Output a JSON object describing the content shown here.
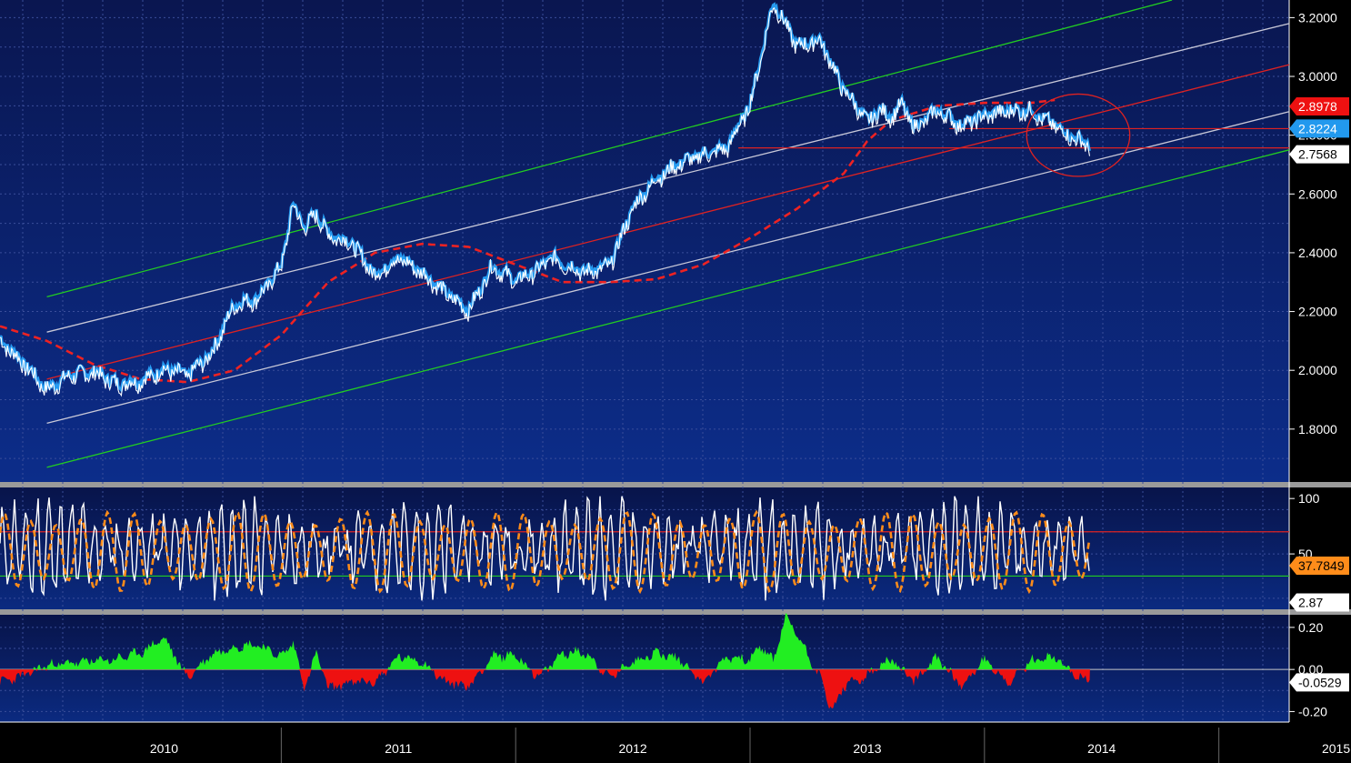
{
  "chart_data": [
    {
      "type": "line",
      "panel": "price",
      "ylim": [
        1.62,
        3.26
      ],
      "yticks": [
        "1.8000",
        "2.0000",
        "2.2000",
        "2.4000",
        "2.6000",
        "2.8000",
        "3.0000",
        "3.2000"
      ],
      "ytick_values": [
        1.8,
        2.0,
        2.2,
        2.4,
        2.6,
        2.8,
        3.0,
        3.2
      ],
      "xlim": [
        2009.8,
        2015.3
      ],
      "xticks": [
        "2010",
        "2011",
        "2012",
        "2013",
        "2014",
        "2015"
      ],
      "xtick_values": [
        2010.0,
        2011.0,
        2012.0,
        2013.0,
        2014.0,
        2015.0
      ],
      "series": [
        {
          "role": "price",
          "color": "#ffffff",
          "x": [
            2009.8,
            2009.9,
            2010.0,
            2010.1,
            2010.2,
            2010.3,
            2010.4,
            2010.5,
            2010.6,
            2010.7,
            2010.8,
            2010.9,
            2011.0,
            2011.05,
            2011.1,
            2011.15,
            2011.2,
            2011.3,
            2011.4,
            2011.5,
            2011.6,
            2011.7,
            2011.8,
            2011.9,
            2012.0,
            2012.1,
            2012.15,
            2012.2,
            2012.3,
            2012.4,
            2012.5,
            2012.6,
            2012.7,
            2012.8,
            2012.9,
            2013.0,
            2013.1,
            2013.2,
            2013.3,
            2013.4,
            2013.45,
            2013.5,
            2013.55,
            2013.6,
            2013.65,
            2013.7,
            2013.8,
            2013.9,
            2014.0,
            2014.1,
            2014.2,
            2014.25,
            2014.3,
            2014.35,
            2014.4,
            2014.45
          ],
          "y": [
            2.1,
            2.02,
            1.93,
            1.98,
            1.99,
            1.95,
            1.96,
            2.0,
            1.98,
            2.05,
            2.22,
            2.24,
            2.35,
            2.56,
            2.48,
            2.53,
            2.46,
            2.43,
            2.32,
            2.38,
            2.33,
            2.26,
            2.2,
            2.35,
            2.3,
            2.34,
            2.38,
            2.36,
            2.33,
            2.35,
            2.55,
            2.65,
            2.7,
            2.73,
            2.75,
            2.9,
            3.25,
            3.1,
            3.12,
            2.95,
            2.9,
            2.84,
            2.88,
            2.86,
            2.9,
            2.82,
            2.88,
            2.83,
            2.86,
            2.88,
            2.88,
            2.85,
            2.83,
            2.8,
            2.78,
            2.76
          ]
        },
        {
          "role": "moving-average",
          "color": "#ee2222",
          "x": [
            2009.8,
            2010.0,
            2010.2,
            2010.4,
            2010.6,
            2010.8,
            2011.0,
            2011.2,
            2011.4,
            2011.6,
            2011.8,
            2012.0,
            2012.2,
            2012.4,
            2012.6,
            2012.8,
            2013.0,
            2013.2,
            2013.4,
            2013.5,
            2013.6,
            2013.8,
            2014.0,
            2014.2,
            2014.3
          ],
          "y": [
            2.15,
            2.1,
            2.02,
            1.97,
            1.96,
            2.0,
            2.12,
            2.3,
            2.4,
            2.43,
            2.42,
            2.36,
            2.3,
            2.3,
            2.31,
            2.36,
            2.45,
            2.55,
            2.67,
            2.78,
            2.85,
            2.9,
            2.91,
            2.91,
            2.92
          ]
        },
        {
          "role": "channel-upper-outer",
          "color": "#22cc22",
          "x": [
            2010.0,
            2014.8
          ],
          "y": [
            2.25,
            3.26
          ]
        },
        {
          "role": "channel-upper-inner",
          "color": "#c8c8d8",
          "x": [
            2010.0,
            2015.3
          ],
          "y": [
            2.13,
            3.18
          ]
        },
        {
          "role": "channel-middle",
          "color": "#dd2222",
          "x": [
            2010.0,
            2015.3
          ],
          "y": [
            1.97,
            3.04
          ]
        },
        {
          "role": "channel-lower-inner",
          "color": "#c8c8d8",
          "x": [
            2010.0,
            2015.3
          ],
          "y": [
            1.82,
            2.88
          ]
        },
        {
          "role": "channel-lower-outer",
          "color": "#22cc22",
          "x": [
            2010.0,
            2015.3
          ],
          "y": [
            1.67,
            2.75
          ]
        }
      ],
      "hlines": [
        {
          "y": 2.8224,
          "color": "#dd2222",
          "x_start": 2013.85
        },
        {
          "y": 2.7568,
          "color": "#dd2222",
          "x_start": 2012.95
        }
      ],
      "tags": [
        {
          "text": "2.8978",
          "value": 2.8978,
          "bg": "#ee1111",
          "fg": "#ffffff"
        },
        {
          "text": "2.8224",
          "value": 2.8224,
          "bg": "#2299ee",
          "fg": "#ffffff"
        },
        {
          "text": "2.7568",
          "value": 2.7568,
          "bg": "#ffffff",
          "fg": "#000000"
        }
      ],
      "annotation": {
        "type": "ellipse",
        "cx": 2014.4,
        "cy": 2.8,
        "rx": 0.22,
        "ry": 0.14,
        "color": "#dd2222"
      }
    },
    {
      "type": "line",
      "panel": "oscillator",
      "ylim": [
        0,
        110
      ],
      "yticks": [
        "100",
        "50"
      ],
      "ytick_values": [
        100,
        50
      ],
      "hlines": [
        {
          "y": 70,
          "color": "#dd2222"
        },
        {
          "y": 30,
          "color": "#22cc22"
        }
      ],
      "series": [
        {
          "role": "fast",
          "color": "#ffffff",
          "cycles": 95,
          "x_end": 2014.45
        },
        {
          "role": "slow",
          "color": "#ff8c1a",
          "cycles": 42,
          "x_end": 2014.45
        }
      ],
      "tags": [
        {
          "text": "37.7849",
          "value": 37.7849,
          "bg": "#ff8c1a",
          "fg": "#000000"
        },
        {
          "text": "2.87",
          "value": 2.87,
          "bg": "#ffffff",
          "fg": "#000000"
        }
      ]
    },
    {
      "type": "area",
      "panel": "momentum",
      "ylim": [
        -0.25,
        0.26
      ],
      "yticks": [
        "0.20",
        "0.00",
        "-0.20"
      ],
      "ytick_values": [
        0.2,
        0.0,
        -0.2
      ],
      "pos_color": "#22ee22",
      "neg_color": "#ee1111",
      "x": [
        2009.8,
        2009.9,
        2010.0,
        2010.1,
        2010.2,
        2010.3,
        2010.4,
        2010.5,
        2010.6,
        2010.7,
        2010.8,
        2010.9,
        2011.0,
        2011.05,
        2011.1,
        2011.15,
        2011.2,
        2011.3,
        2011.4,
        2011.5,
        2011.6,
        2011.7,
        2011.8,
        2011.9,
        2012.0,
        2012.1,
        2012.2,
        2012.3,
        2012.4,
        2012.5,
        2012.6,
        2012.7,
        2012.8,
        2012.9,
        2013.0,
        2013.05,
        2013.1,
        2013.15,
        2013.2,
        2013.3,
        2013.35,
        2013.4,
        2013.5,
        2013.6,
        2013.7,
        2013.8,
        2013.9,
        2014.0,
        2014.1,
        2014.2,
        2014.3,
        2014.4,
        2014.45
      ],
      "y": [
        -0.06,
        -0.03,
        0.02,
        0.03,
        0.04,
        0.05,
        0.08,
        0.15,
        -0.04,
        0.07,
        0.11,
        0.12,
        0.06,
        0.13,
        -0.09,
        0.08,
        -0.09,
        -0.06,
        -0.06,
        0.06,
        0.04,
        -0.06,
        -0.08,
        0.06,
        0.07,
        -0.04,
        0.08,
        0.08,
        -0.04,
        0.04,
        0.08,
        0.05,
        -0.06,
        0.06,
        0.05,
        0.11,
        0.04,
        0.25,
        0.17,
        -0.04,
        -0.2,
        -0.08,
        -0.03,
        0.05,
        -0.06,
        0.06,
        -0.08,
        0.05,
        -0.07,
        0.04,
        0.06,
        -0.04,
        -0.05
      ],
      "tags": [
        {
          "text": "-0.0529",
          "value": -0.0529,
          "bg": "#ffffff",
          "fg": "#000000"
        }
      ]
    }
  ]
}
